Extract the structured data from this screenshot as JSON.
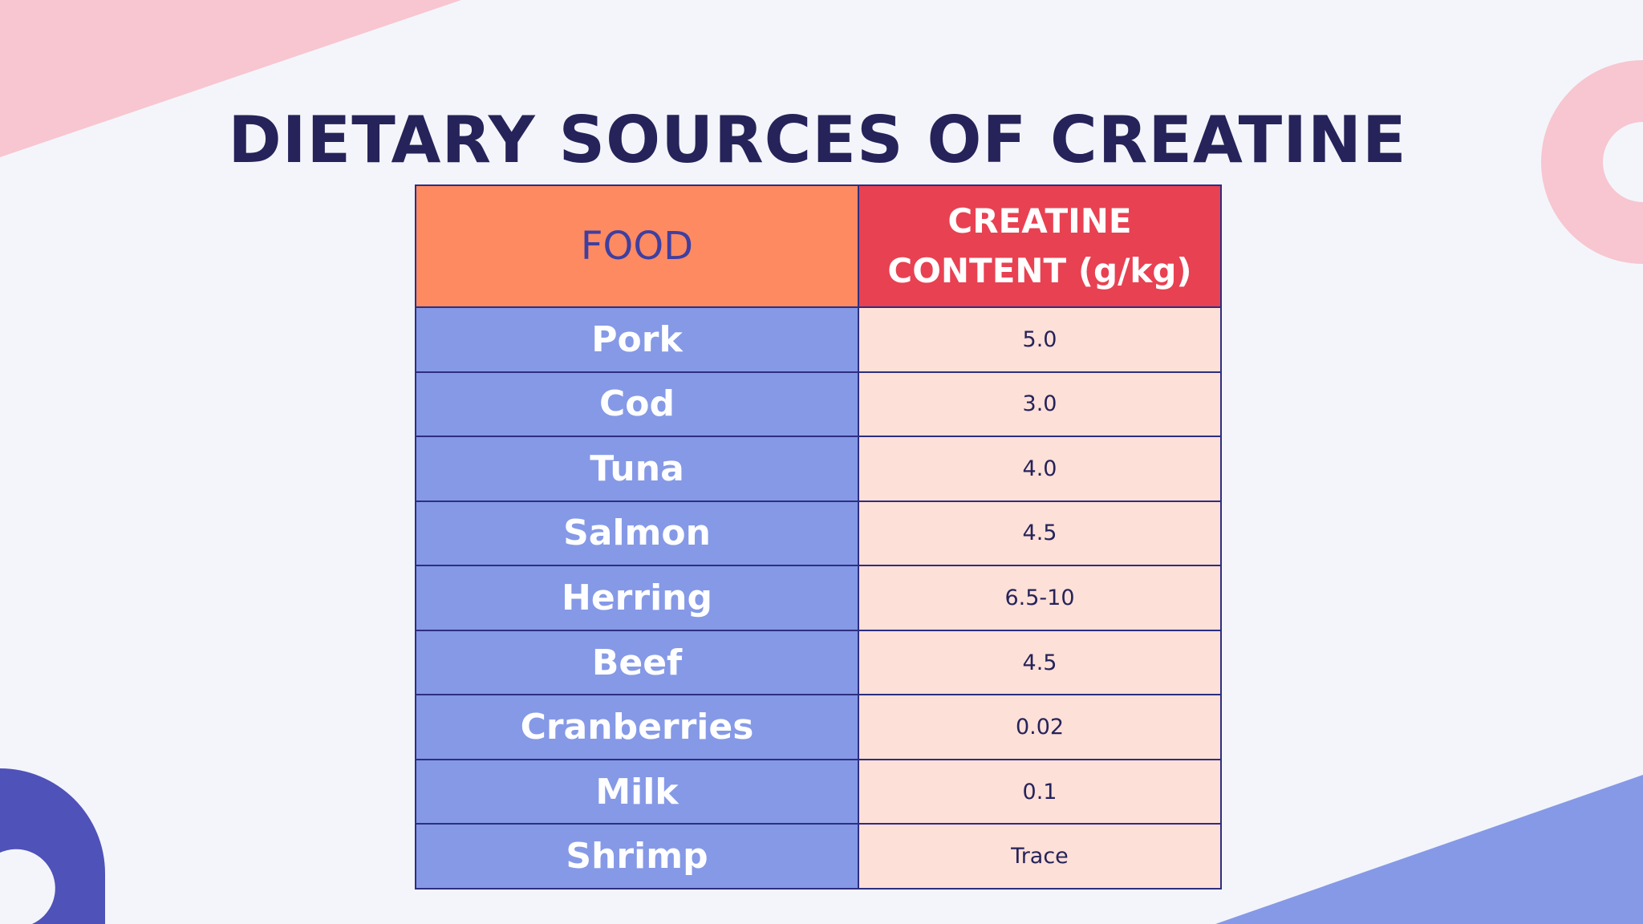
{
  "header": {
    "title": "DIETARY SOURCES OF CREATINE"
  },
  "table": {
    "columns": [
      "FOOD",
      "CREATINE CONTENT (g/kg)"
    ],
    "rows": [
      [
        "Pork",
        "5.0"
      ],
      [
        "Cod",
        "3.0"
      ],
      [
        "Tuna",
        "4.0"
      ],
      [
        "Salmon",
        "4.5"
      ],
      [
        "Herring",
        "6.5-10"
      ],
      [
        "Beef",
        "4.5"
      ],
      [
        "Cranberries",
        "0.02"
      ],
      [
        "Milk",
        "0.1"
      ],
      [
        "Shrimp",
        "Trace"
      ]
    ]
  }
}
